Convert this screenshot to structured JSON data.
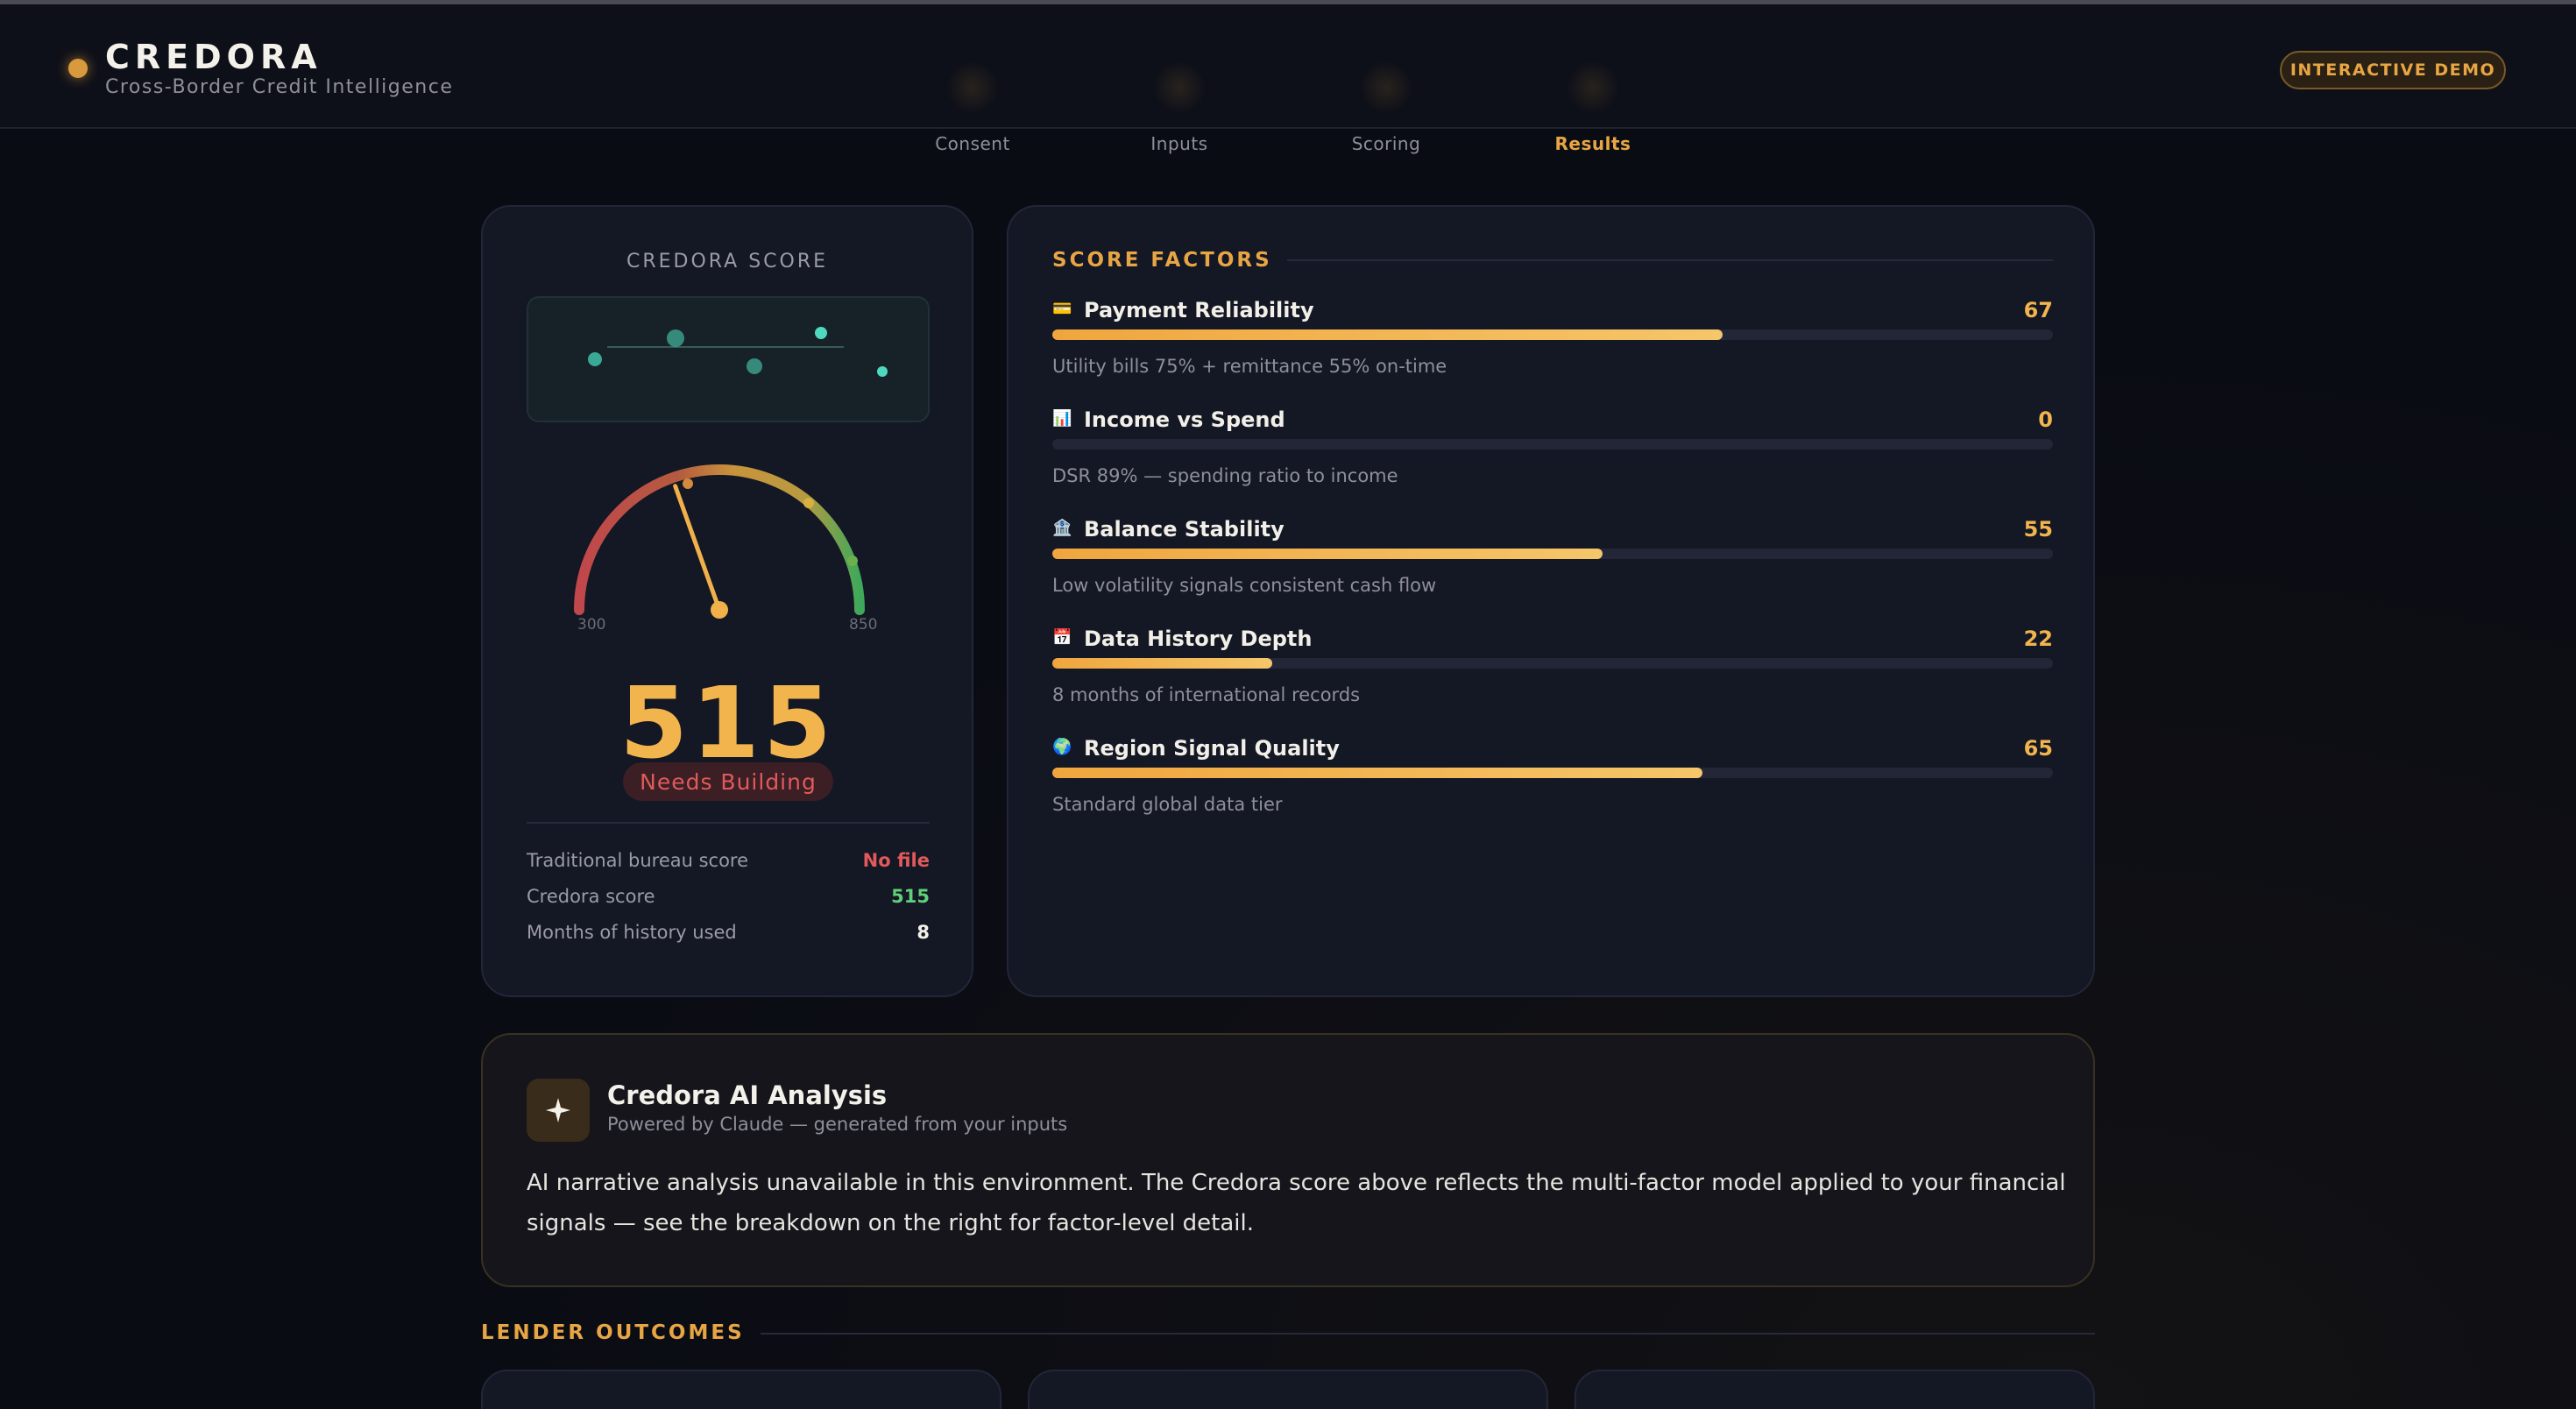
{
  "header": {
    "brand": "CREDORA",
    "tagline": "Cross-Border Credit Intelligence",
    "demo_badge": "INTERACTIVE DEMO"
  },
  "steps": [
    {
      "label": "Consent",
      "active": false
    },
    {
      "label": "Inputs",
      "active": false
    },
    {
      "label": "Scoring",
      "active": false
    },
    {
      "label": "Results",
      "active": true
    }
  ],
  "score_card": {
    "title": "CREDORA SCORE",
    "gauge_min": "300",
    "gauge_max": "850",
    "score": "515",
    "score_value": 515,
    "status": "Needs Building",
    "stats": [
      {
        "label": "Traditional bureau score",
        "value": "No file",
        "color": "#e05a5a"
      },
      {
        "label": "Credora score",
        "value": "515",
        "color": "#5fcf7a"
      },
      {
        "label": "Months of history used",
        "value": "8",
        "color": "#f3f1ea"
      }
    ]
  },
  "factors": {
    "title": "SCORE FACTORS",
    "items": [
      {
        "icon": "credit-card-icon",
        "glyph": "💳",
        "name": "Payment Reliability",
        "value": "67",
        "level": 0.67,
        "desc": "Utility bills 75% + remittance 55% on-time"
      },
      {
        "icon": "bar-chart-icon",
        "glyph": "📊",
        "name": "Income vs Spend",
        "value": "0",
        "level": 0,
        "desc": "DSR 89% — spending ratio to income"
      },
      {
        "icon": "bank-icon",
        "glyph": "🏦",
        "name": "Balance Stability",
        "value": "55",
        "level": 0.55,
        "desc": "Low volatility signals consistent cash flow"
      },
      {
        "icon": "calendar-icon",
        "glyph": "📅",
        "name": "Data History Depth",
        "value": "22",
        "level": 0.22,
        "desc": "8 months of international records"
      },
      {
        "icon": "globe-icon",
        "glyph": "🌍",
        "name": "Region Signal Quality",
        "value": "65",
        "level": 0.65,
        "desc": "Standard global data tier"
      }
    ]
  },
  "ai": {
    "title": "Credora AI Analysis",
    "subtitle": "Powered by Claude — generated from your inputs",
    "body": "AI narrative analysis unavailable in this environment. The Credora score above reflects the multi-factor model applied to your financial signals — see the breakdown on the right for factor-level detail."
  },
  "lender_outcomes": {
    "title": "LENDER OUTCOMES"
  },
  "colors": {
    "accent": "#e8a544",
    "score": "#f2b44d",
    "danger": "#e05a5a",
    "success": "#5fcf7a"
  }
}
